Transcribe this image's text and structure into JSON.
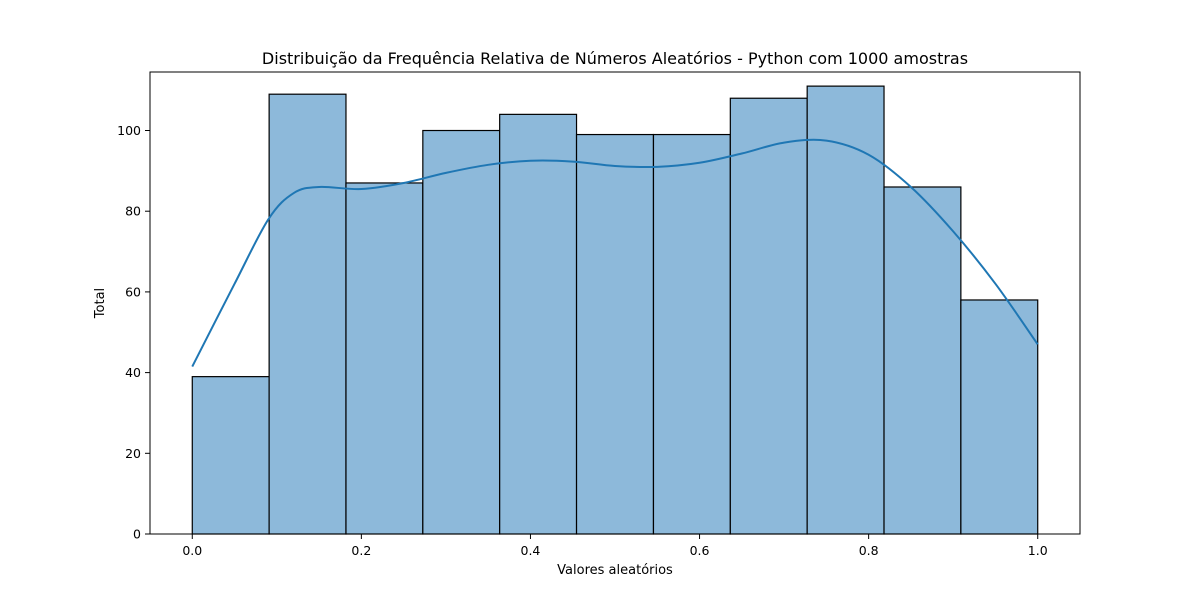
{
  "chart_data": {
    "type": "bar",
    "title": "Distribuição da Frequência Relativa de Números Aleatórios - Python com 1000 amostras",
    "xlabel": "Valores aleatórios",
    "ylabel": "Total",
    "bins": [
      {
        "start": 0.0,
        "end": 0.0909,
        "value": 39
      },
      {
        "start": 0.0909,
        "end": 0.1818,
        "value": 109
      },
      {
        "start": 0.1818,
        "end": 0.2727,
        "value": 87
      },
      {
        "start": 0.2727,
        "end": 0.3636,
        "value": 100
      },
      {
        "start": 0.3636,
        "end": 0.4545,
        "value": 104
      },
      {
        "start": 0.4545,
        "end": 0.5455,
        "value": 99
      },
      {
        "start": 0.5455,
        "end": 0.6364,
        "value": 99
      },
      {
        "start": 0.6364,
        "end": 0.7273,
        "value": 108
      },
      {
        "start": 0.7273,
        "end": 0.8182,
        "value": 111
      },
      {
        "start": 0.8182,
        "end": 0.9091,
        "value": 86
      },
      {
        "start": 0.9091,
        "end": 1.0,
        "value": 58
      }
    ],
    "kde": {
      "x": [
        0.0,
        0.05,
        0.09,
        0.12,
        0.15,
        0.2,
        0.25,
        0.3,
        0.35,
        0.4,
        0.45,
        0.5,
        0.55,
        0.6,
        0.65,
        0.7,
        0.75,
        0.8,
        0.85,
        0.9,
        0.95,
        1.0
      ],
      "y": [
        41.5,
        62,
        78,
        84.5,
        86,
        85.5,
        87,
        89.5,
        91.5,
        92.5,
        92.3,
        91.2,
        91,
        92,
        94.3,
        97,
        97.5,
        94,
        86,
        75,
        62,
        47
      ]
    },
    "xlim": [
      -0.05,
      1.05
    ],
    "ylim": [
      0,
      114.5
    ],
    "xticks": [
      0.0,
      0.2,
      0.4,
      0.6,
      0.8,
      1.0
    ],
    "xtick_labels": [
      "0.0",
      "0.2",
      "0.4",
      "0.6",
      "0.8",
      "1.0"
    ],
    "yticks": [
      0,
      20,
      40,
      60,
      80,
      100
    ],
    "ytick_labels": [
      "0",
      "20",
      "40",
      "60",
      "80",
      "100"
    ],
    "grid": false,
    "colors": {
      "bar_fill": "#8db9da",
      "bar_edge": "#000000",
      "kde_line": "#1f77b4",
      "axis": "#000000"
    }
  }
}
